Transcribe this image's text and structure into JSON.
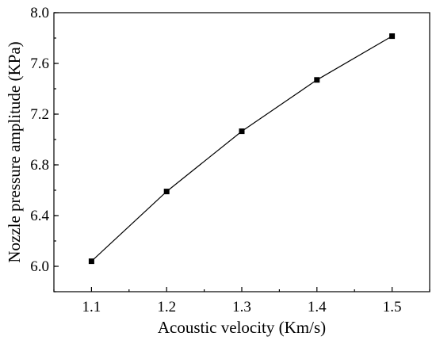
{
  "chart_data": {
    "type": "line",
    "xlabel": "Acoustic velocity (Km/s)",
    "ylabel": "Nozzle pressure amplitude (KPa)",
    "xlim": [
      1.05,
      1.55
    ],
    "ylim": [
      5.8,
      8.0
    ],
    "xticks": [
      "1.1",
      "1.2",
      "1.3",
      "1.4",
      "1.5"
    ],
    "yticks": [
      "6.0",
      "6.4",
      "6.8",
      "7.2",
      "7.6",
      "8.0"
    ],
    "grid": false,
    "series": [
      {
        "x": [
          1.1,
          1.2,
          1.3,
          1.4,
          1.5
        ],
        "y": [
          6.04,
          6.59,
          7.065,
          7.47,
          7.815
        ],
        "marker": "square",
        "color": "#000000"
      }
    ]
  }
}
